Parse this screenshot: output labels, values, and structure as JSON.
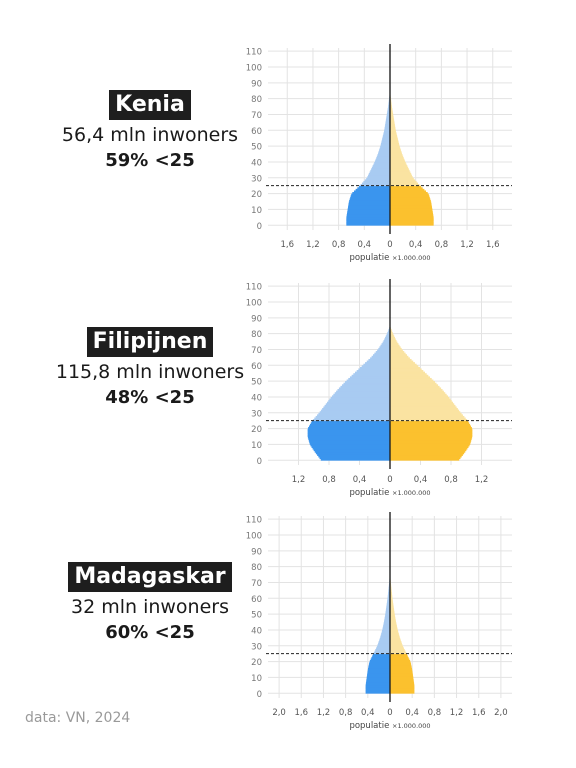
{
  "colors": {
    "male_young": "#3a95ee",
    "male_old": "#a8cbf2",
    "female_young": "#fbc12e",
    "female_old": "#fae3a1",
    "grid": "#e3e3e3",
    "axis": "#222222",
    "tick": "#777777"
  },
  "source": "data: VN, 2024",
  "chart_data": [
    {
      "type": "population_pyramid",
      "country": "Kenia",
      "population_label": "56,4 mln inwoners",
      "under25_label": "59% <25",
      "xlabel": "populatie",
      "xlabel_unit": "×1.000.000",
      "xlim": [
        -1.9,
        1.9
      ],
      "ylim": [
        -3,
        112
      ],
      "x_ticks": [
        -1.6,
        -1.2,
        -0.8,
        -0.4,
        0,
        0.4,
        0.8,
        1.2,
        1.6
      ],
      "x_tick_labels": [
        "1,6",
        "1,2",
        "0,8",
        "0,4",
        "0",
        "0,4",
        "0,8",
        "1,2",
        "1,6"
      ],
      "y_ticks": [
        0,
        10,
        20,
        30,
        40,
        50,
        60,
        70,
        80,
        90,
        100,
        110
      ],
      "y_tick_labels": [
        "0",
        "10",
        "20",
        "30",
        "40",
        "50",
        "60",
        "70",
        "80",
        "90",
        "100",
        "110"
      ],
      "reference_age": 25,
      "profile": [
        [
          0,
          0.68
        ],
        [
          5,
          0.68
        ],
        [
          10,
          0.66
        ],
        [
          15,
          0.64
        ],
        [
          20,
          0.6
        ],
        [
          25,
          0.47
        ],
        [
          30,
          0.36
        ],
        [
          35,
          0.3
        ],
        [
          40,
          0.24
        ],
        [
          45,
          0.19
        ],
        [
          50,
          0.15
        ],
        [
          55,
          0.12
        ],
        [
          60,
          0.09
        ],
        [
          65,
          0.07
        ],
        [
          70,
          0.05
        ],
        [
          75,
          0.03
        ],
        [
          80,
          0.015
        ],
        [
          85,
          0
        ]
      ]
    },
    {
      "type": "population_pyramid",
      "country": "Filipijnen",
      "population_label": "115,8 mln inwoners",
      "under25_label": "48% <25",
      "xlabel": "populatie",
      "xlabel_unit": "×1.000.000",
      "xlim": [
        -1.6,
        1.6
      ],
      "ylim": [
        -3,
        112
      ],
      "x_ticks": [
        -1.2,
        -0.8,
        -0.4,
        0,
        0.4,
        0.8,
        1.2
      ],
      "x_tick_labels": [
        "1,2",
        "0,8",
        "0,4",
        "0",
        "0,4",
        "0,8",
        "1,2"
      ],
      "y_ticks": [
        0,
        10,
        20,
        30,
        40,
        50,
        60,
        70,
        80,
        90,
        100,
        110
      ],
      "y_tick_labels": [
        "0",
        "10",
        "20",
        "30",
        "40",
        "50",
        "60",
        "70",
        "80",
        "90",
        "100",
        "110"
      ],
      "reference_age": 25,
      "profile": [
        [
          0,
          0.9
        ],
        [
          5,
          0.98
        ],
        [
          10,
          1.05
        ],
        [
          15,
          1.08
        ],
        [
          20,
          1.08
        ],
        [
          25,
          1.02
        ],
        [
          30,
          0.93
        ],
        [
          35,
          0.85
        ],
        [
          40,
          0.77
        ],
        [
          45,
          0.68
        ],
        [
          50,
          0.58
        ],
        [
          55,
          0.47
        ],
        [
          60,
          0.36
        ],
        [
          65,
          0.25
        ],
        [
          70,
          0.16
        ],
        [
          75,
          0.09
        ],
        [
          80,
          0.04
        ],
        [
          85,
          0
        ]
      ]
    },
    {
      "type": "population_pyramid",
      "country": "Madagaskar",
      "population_label": "32 mln inwoners",
      "under25_label": "60% <25",
      "xlabel": "populatie",
      "xlabel_unit": "×1.000.000",
      "xlim": [
        -2.2,
        2.2
      ],
      "ylim": [
        -3,
        112
      ],
      "x_ticks": [
        -2.0,
        -1.6,
        -1.2,
        -0.8,
        -0.4,
        0,
        0.4,
        0.8,
        1.2,
        1.6,
        2.0
      ],
      "x_tick_labels": [
        "2,0",
        "1,6",
        "1,2",
        "0,8",
        "0,4",
        "0",
        "0,4",
        "0,8",
        "1,2",
        "1,6",
        "2,0"
      ],
      "y_ticks": [
        0,
        10,
        20,
        30,
        40,
        50,
        60,
        70,
        80,
        90,
        100,
        110
      ],
      "y_tick_labels": [
        "0",
        "10",
        "20",
        "30",
        "40",
        "50",
        "60",
        "70",
        "80",
        "90",
        "100",
        "110"
      ],
      "reference_age": 25,
      "profile": [
        [
          0,
          0.44
        ],
        [
          5,
          0.44
        ],
        [
          10,
          0.42
        ],
        [
          15,
          0.4
        ],
        [
          20,
          0.37
        ],
        [
          25,
          0.3
        ],
        [
          30,
          0.23
        ],
        [
          35,
          0.18
        ],
        [
          40,
          0.14
        ],
        [
          45,
          0.11
        ],
        [
          50,
          0.085
        ],
        [
          55,
          0.065
        ],
        [
          60,
          0.045
        ],
        [
          65,
          0.03
        ],
        [
          70,
          0.015
        ],
        [
          75,
          0.005
        ],
        [
          80,
          0
        ]
      ]
    }
  ]
}
